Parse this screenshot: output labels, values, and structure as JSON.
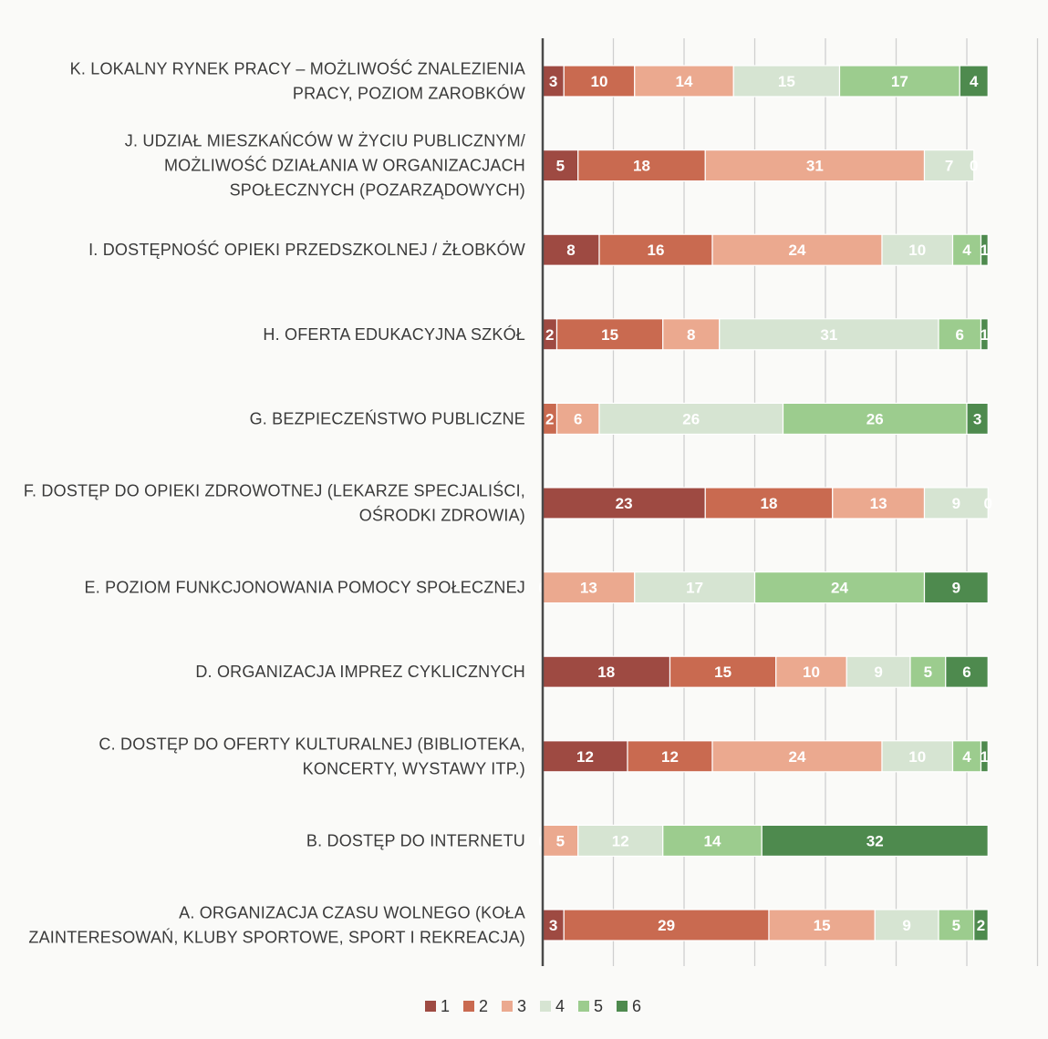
{
  "chart_data": {
    "type": "bar",
    "orientation": "horizontal",
    "stacked": true,
    "categories": [
      [
        "K. LOKALNY RYNEK PRACY – MOŻLIWOŚĆ ZNALEZIENIA",
        "PRACY, POZIOM ZAROBKÓW"
      ],
      [
        "J. UDZIAŁ MIESZKAŃCÓW W ŻYCIU PUBLICZNYM/",
        "MOŻLIWOŚĆ DZIAŁANIA W ORGANIZACJACH",
        "SPOŁECZNYCH (POZARZĄDOWYCH)"
      ],
      [
        "I. DOSTĘPNOŚĆ OPIEKI PRZEDSZKOLNEJ / ŻŁOBKÓW"
      ],
      [
        "H. OFERTA EDUKACYJNA SZKÓŁ"
      ],
      [
        "G. BEZPIECZEŃSTWO PUBLICZNE"
      ],
      [
        "F. DOSTĘP DO OPIEKI ZDROWOTNEJ (LEKARZE SPECJALIŚCI,",
        "OŚRODKI ZDROWIA)"
      ],
      [
        "E. POZIOM FUNKCJONOWANIA POMOCY SPOŁECZNEJ"
      ],
      [
        "D. ORGANIZACJA IMPREZ CYKLICZNYCH"
      ],
      [
        "C. DOSTĘP DO OFERTY KULTURALNEJ (BIBLIOTEKA,",
        "KONCERTY, WYSTAWY ITP.)"
      ],
      [
        "B. DOSTĘP DO INTERNETU"
      ],
      [
        "A. ORGANIZACJA CZASU WOLNEGO (KOŁA",
        "ZAINTERESOWAŃ, KLUBY SPORTOWE, SPORT I REKREACJA)"
      ]
    ],
    "series": [
      {
        "name": "1",
        "color": "#9e4a42",
        "values": [
          3,
          5,
          8,
          2,
          0,
          23,
          0,
          18,
          12,
          0,
          3
        ]
      },
      {
        "name": "2",
        "color": "#c96a50",
        "values": [
          10,
          18,
          16,
          15,
          2,
          18,
          0,
          15,
          12,
          0,
          29
        ]
      },
      {
        "name": "3",
        "color": "#eba98f",
        "values": [
          14,
          31,
          24,
          8,
          6,
          13,
          13,
          10,
          24,
          5,
          15
        ]
      },
      {
        "name": "4",
        "color": "#d6e4d2",
        "values": [
          15,
          7,
          10,
          31,
          26,
          9,
          17,
          9,
          10,
          12,
          9
        ]
      },
      {
        "name": "5",
        "color": "#9ccc8e",
        "values": [
          17,
          0,
          4,
          6,
          26,
          0,
          24,
          5,
          4,
          14,
          5
        ]
      },
      {
        "name": "6",
        "color": "#4e8a4e",
        "values": [
          4,
          0,
          1,
          1,
          3,
          0,
          9,
          6,
          1,
          32,
          2
        ]
      }
    ],
    "value_labels": [
      [
        "3",
        "10",
        "14",
        "15",
        "17",
        "4"
      ],
      [
        "5",
        "18",
        "31",
        "7",
        "",
        "0"
      ],
      [
        "8",
        "16",
        "24",
        "10",
        "4",
        "1"
      ],
      [
        "2",
        "15",
        "8",
        "31",
        "6",
        "1"
      ],
      [
        "",
        "2",
        "6",
        "26",
        "26",
        "3"
      ],
      [
        "23",
        "18",
        "13",
        "9",
        "",
        "0"
      ],
      [
        "0",
        "",
        "13",
        "17",
        "24",
        "9"
      ],
      [
        "18",
        "15",
        "10",
        "9",
        "5",
        "6"
      ],
      [
        "12",
        "12",
        "24",
        "10",
        "4",
        "1"
      ],
      [
        "0",
        "",
        "5",
        "12",
        "14",
        "32"
      ],
      [
        "3",
        "29",
        "15",
        "9",
        "5",
        "2"
      ]
    ],
    "xlim": [
      0,
      70
    ],
    "grid": true,
    "legend": {
      "position": "bottom",
      "entries": [
        "1",
        "2",
        "3",
        "4",
        "5",
        "6"
      ]
    }
  }
}
